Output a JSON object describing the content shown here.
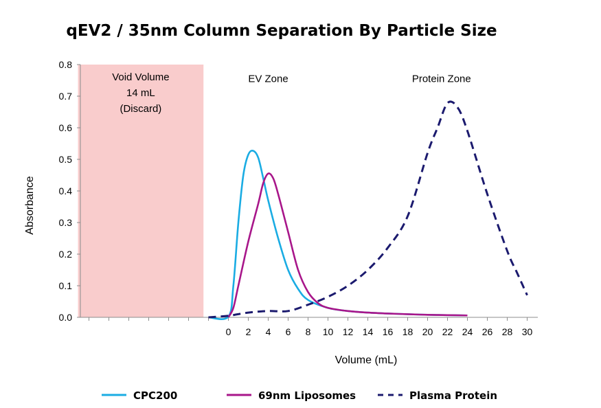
{
  "chart_data": {
    "type": "line",
    "title": "qEV2 / 35nm Column Separation By Particle Size",
    "xlabel": "Volume (mL)",
    "ylabel": "Absorbance",
    "ylim": [
      0,
      0.8
    ],
    "y_ticks": [
      "0.0",
      "0.1",
      "0.2",
      "0.3",
      "0.4",
      "0.5",
      "0.6",
      "0.7",
      "0.8"
    ],
    "x_tick_values": [
      0,
      2,
      4,
      6,
      8,
      10,
      12,
      14,
      16,
      18,
      20,
      22,
      24,
      26,
      28,
      30
    ],
    "x_ticks": [
      "0",
      "2",
      "4",
      "6",
      "8",
      "10",
      "12",
      "14",
      "16",
      "18",
      "20",
      "22",
      "24",
      "26",
      "28",
      "30"
    ],
    "void_region": {
      "x_start": -15.1,
      "x_end": -2.5,
      "lines": [
        "Void Volume",
        "14 mL",
        "(Discard)"
      ],
      "color": "#f9cccc"
    },
    "zones": [
      {
        "label": "EV Zone",
        "x": 4,
        "y": 0.755
      },
      {
        "label": "Protein Zone",
        "x": 21.4,
        "y": 0.755
      }
    ],
    "series": [
      {
        "name": "CPC200",
        "color": "#1aace3",
        "dash": false,
        "x": [
          -2,
          0,
          0.5,
          1,
          1.5,
          2,
          2.5,
          3,
          3.5,
          4,
          5,
          6,
          7,
          8,
          10,
          12,
          14,
          16,
          18,
          20,
          22,
          24
        ],
        "y": [
          0,
          0.002,
          0.1,
          0.3,
          0.45,
          0.515,
          0.527,
          0.505,
          0.44,
          0.37,
          0.25,
          0.15,
          0.09,
          0.055,
          0.03,
          0.02,
          0.015,
          0.012,
          0.01,
          0.008,
          0.007,
          0.006
        ]
      },
      {
        "name": "69nm Liposomes",
        "color": "#a8168a",
        "dash": false,
        "x": [
          0,
          0.5,
          1,
          2,
          3,
          3.5,
          4,
          4.5,
          5,
          6,
          7,
          8,
          9,
          10,
          12,
          14,
          16,
          18,
          20,
          22,
          24
        ],
        "y": [
          0,
          0.03,
          0.1,
          0.24,
          0.36,
          0.425,
          0.455,
          0.44,
          0.39,
          0.27,
          0.15,
          0.08,
          0.045,
          0.03,
          0.02,
          0.015,
          0.012,
          0.01,
          0.008,
          0.007,
          0.006
        ]
      },
      {
        "name": "Plasma Protein",
        "color": "#1b1a6e",
        "dash": true,
        "x": [
          -2,
          0,
          2,
          4,
          6,
          8,
          10,
          12,
          14,
          16,
          18,
          20,
          21,
          22,
          23,
          24,
          26,
          28,
          29,
          30
        ],
        "y": [
          0,
          0.005,
          0.015,
          0.02,
          0.02,
          0.04,
          0.065,
          0.1,
          0.15,
          0.22,
          0.32,
          0.52,
          0.6,
          0.678,
          0.665,
          0.59,
          0.39,
          0.21,
          0.14,
          0.07
        ]
      }
    ],
    "legend": [
      "CPC200",
      "69nm Liposomes",
      "Plasma Protein"
    ],
    "legend_position": "bottom"
  }
}
